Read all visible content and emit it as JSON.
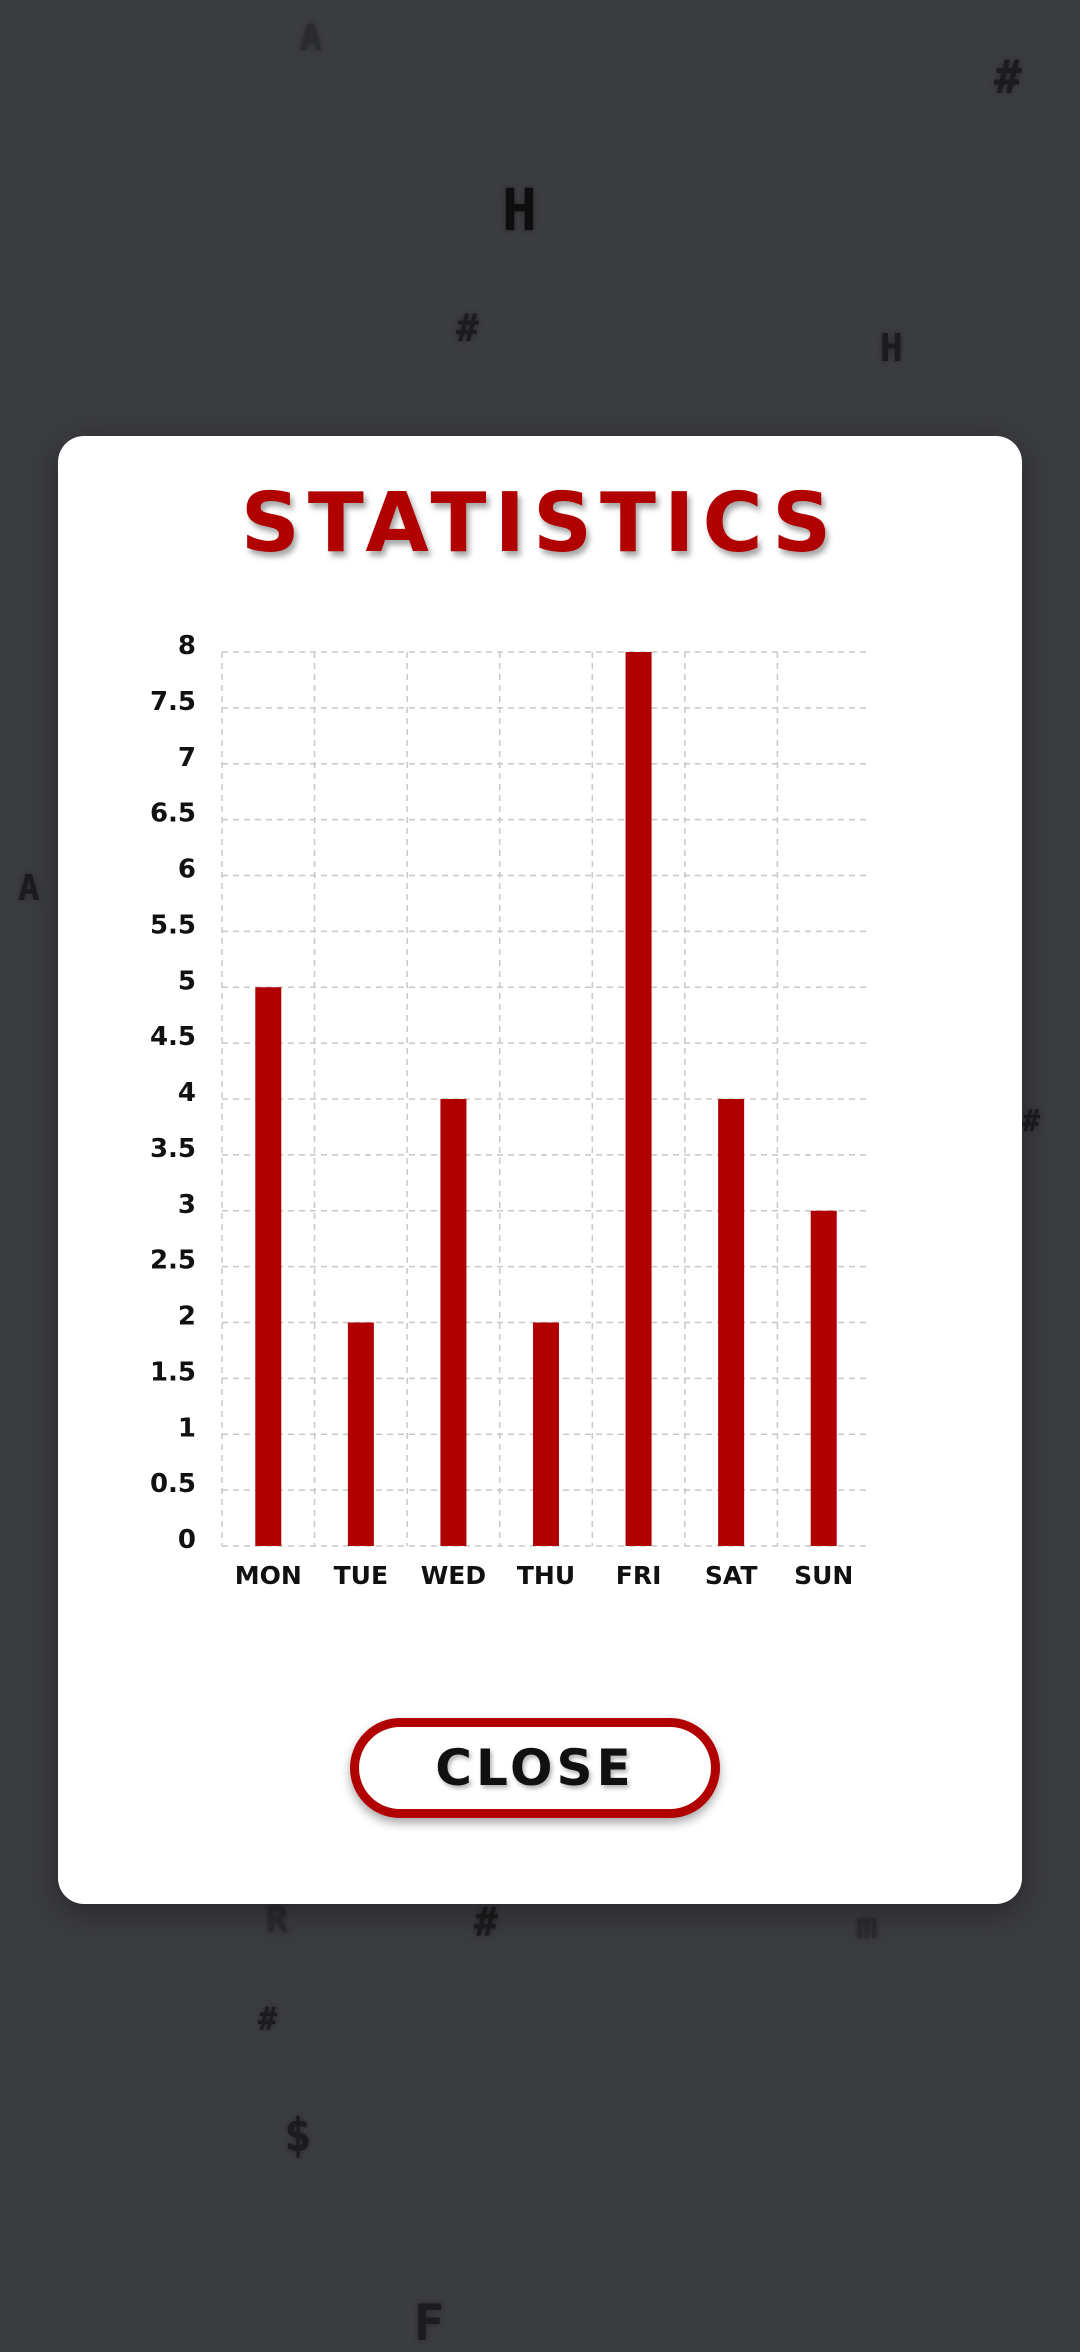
{
  "background": {
    "color": "#3b3c40",
    "glyphs": [
      "A",
      "#",
      "H",
      "#",
      "H",
      "A",
      "#",
      "R",
      "#",
      "m",
      "#",
      "$",
      "F"
    ]
  },
  "dialog": {
    "title": "STATISTICS",
    "close_label": "CLOSE",
    "accent_color": "#b00000"
  },
  "chart_data": {
    "type": "bar",
    "title": "STATISTICS",
    "xlabel": "",
    "ylabel": "",
    "categories": [
      "MON",
      "TUE",
      "WED",
      "THU",
      "FRI",
      "SAT",
      "SUN"
    ],
    "values": [
      5,
      2,
      4,
      2,
      8,
      4,
      3
    ],
    "ylim": [
      0,
      8
    ],
    "yticks": [
      "0",
      "0.5",
      "1",
      "1.5",
      "2",
      "2.5",
      "3",
      "3.5",
      "4",
      "4.5",
      "5",
      "5.5",
      "6",
      "6.5",
      "7",
      "7.5",
      "8"
    ],
    "grid": true,
    "bar_color": "#b00000"
  }
}
